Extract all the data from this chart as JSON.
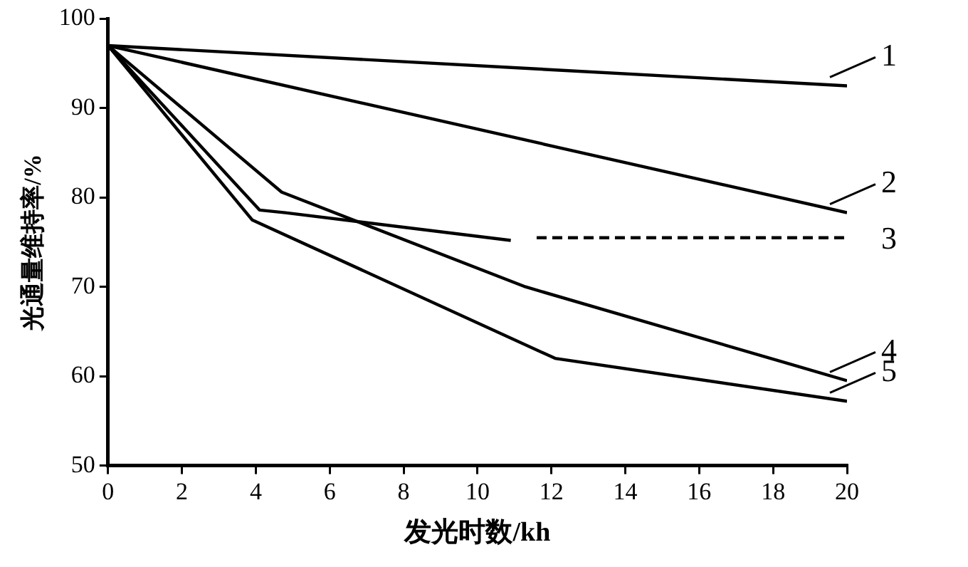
{
  "chart_data": {
    "type": "line",
    "xlabel": "发光时数/kh",
    "ylabel": "光通量维持率/%",
    "xlim": [
      0,
      20
    ],
    "xticks": [
      0,
      2,
      4,
      6,
      8,
      10,
      12,
      14,
      16,
      18,
      20
    ],
    "ylim": [
      50,
      100
    ],
    "yticks": [
      50,
      60,
      70,
      80,
      90,
      100
    ],
    "grid": false,
    "legend": "right",
    "marker": "none",
    "series": [
      {
        "name": "1",
        "color": "#000000",
        "x": [
          0,
          20
        ],
        "values": [
          97,
          92.5
        ]
      },
      {
        "name": "2",
        "color": "#000000",
        "x": [
          0,
          20
        ],
        "values": [
          97,
          78.3
        ]
      },
      {
        "name": "3",
        "color": "#000000",
        "x": [
          0,
          4.1,
          4.8,
          10.9
        ],
        "values": [
          97,
          78.6,
          78.3,
          75.2
        ]
      },
      {
        "color": "#000000",
        "x": [
          11.6,
          20
        ],
        "values": [
          75.5,
          75.5
        ],
        "line_style": "dashed"
      },
      {
        "name": "4",
        "color": "#000000",
        "x": [
          0,
          4.7,
          11.3,
          20
        ],
        "values": [
          97,
          80.6,
          70,
          59.5
        ]
      },
      {
        "name": "5",
        "color": "#000000",
        "x": [
          0,
          3.9,
          12.1,
          20
        ],
        "values": [
          97,
          77.5,
          62,
          57.2
        ]
      }
    ]
  }
}
